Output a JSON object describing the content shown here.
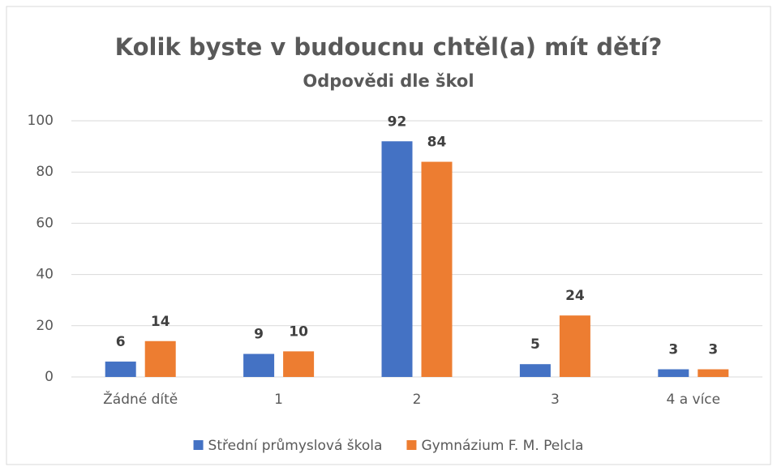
{
  "chart_data": {
    "type": "bar",
    "title": "Kolik byste v budoucnu chtěl(a) mít dětí?",
    "subtitle": "Odpovědi dle škol",
    "categories": [
      "Žádné dítě",
      "1",
      "2",
      "3",
      "4 a více"
    ],
    "series": [
      {
        "name": "Střední průmyslová škola",
        "color": "#4472c4",
        "values": [
          6,
          9,
          92,
          5,
          3
        ]
      },
      {
        "name": "Gymnázium F. M. Pelcla",
        "color": "#ed7d31",
        "values": [
          14,
          10,
          84,
          24,
          3
        ]
      }
    ],
    "ylim": [
      0,
      100
    ],
    "yticks": [
      0,
      20,
      40,
      60,
      80,
      100
    ],
    "grid": true,
    "legend": "bottom"
  }
}
